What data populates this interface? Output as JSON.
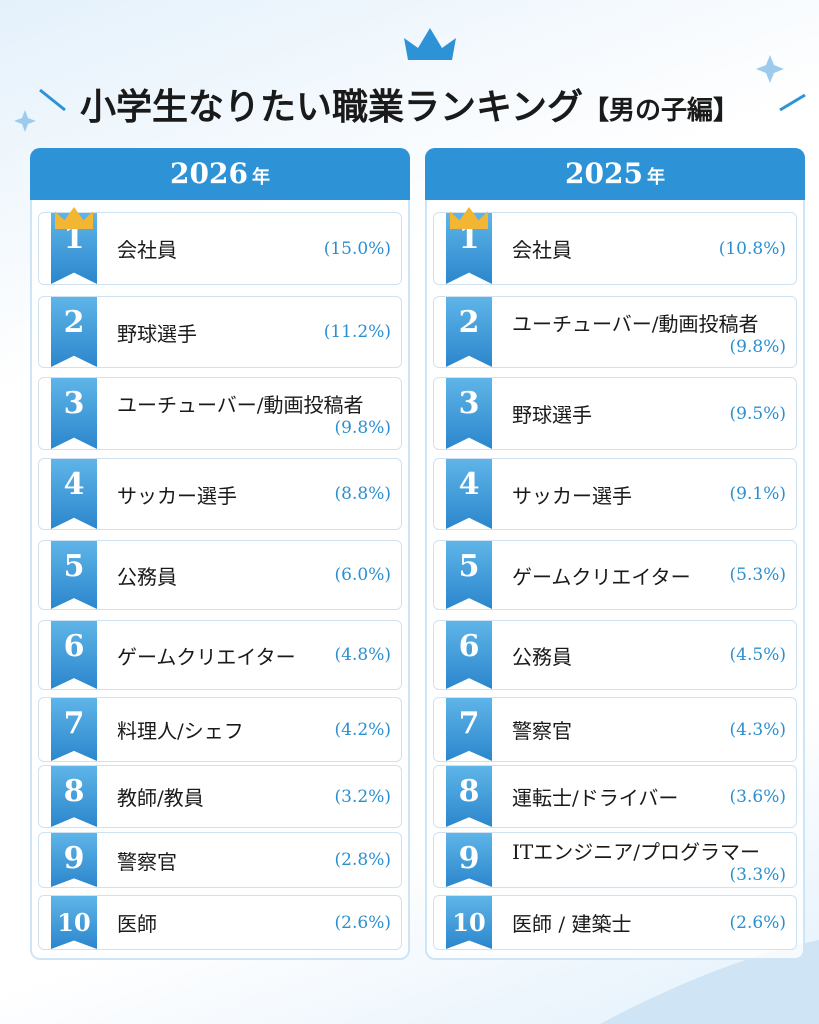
{
  "header": {
    "title": "小学生なりたい職業ランキング",
    "subtitle": "【男の子編】"
  },
  "columns": [
    {
      "year": "2026",
      "year_suffix": "年",
      "rows": [
        {
          "rank": "1",
          "job": "会社員",
          "share": "(15.0%)"
        },
        {
          "rank": "2",
          "job": "野球選手",
          "share": "(11.2%)"
        },
        {
          "rank": "3",
          "job": "ユーチューバー/動画投稿者",
          "share": "(9.8%)"
        },
        {
          "rank": "4",
          "job": "サッカー選手",
          "share": "(8.8%)"
        },
        {
          "rank": "5",
          "job": "公務員",
          "share": "(6.0%)"
        },
        {
          "rank": "6",
          "job": "ゲームクリエイター",
          "share": "(4.8%)"
        },
        {
          "rank": "7",
          "job": "料理人/シェフ",
          "share": "(4.2%)"
        },
        {
          "rank": "8",
          "job": "教師/教員",
          "share": "(3.2%)"
        },
        {
          "rank": "9",
          "job": "警察官",
          "share": "(2.8%)"
        },
        {
          "rank": "10",
          "job": "医師",
          "share": "(2.6%)"
        }
      ]
    },
    {
      "year": "2025",
      "year_suffix": "年",
      "rows": [
        {
          "rank": "1",
          "job": "会社員",
          "share": "(10.8%)"
        },
        {
          "rank": "2",
          "job": "ユーチューバー/動画投稿者",
          "share": "(9.8%)"
        },
        {
          "rank": "3",
          "job": "野球選手",
          "share": "(9.5%)"
        },
        {
          "rank": "4",
          "job": "サッカー選手",
          "share": "(9.1%)"
        },
        {
          "rank": "5",
          "job": "ゲームクリエイター",
          "share": "(5.3%)"
        },
        {
          "rank": "6",
          "job": "公務員",
          "share": "(4.5%)"
        },
        {
          "rank": "7",
          "job": "警察官",
          "share": "(4.3%)"
        },
        {
          "rank": "8",
          "job": "運転士/ドライバー",
          "share": "(3.6%)"
        },
        {
          "rank": "9",
          "job": "ITエンジニア/プログラマー",
          "share": "(3.3%)"
        },
        {
          "rank": "10",
          "job": "医師 / 建築士",
          "share": "(2.6%)"
        }
      ]
    }
  ]
}
